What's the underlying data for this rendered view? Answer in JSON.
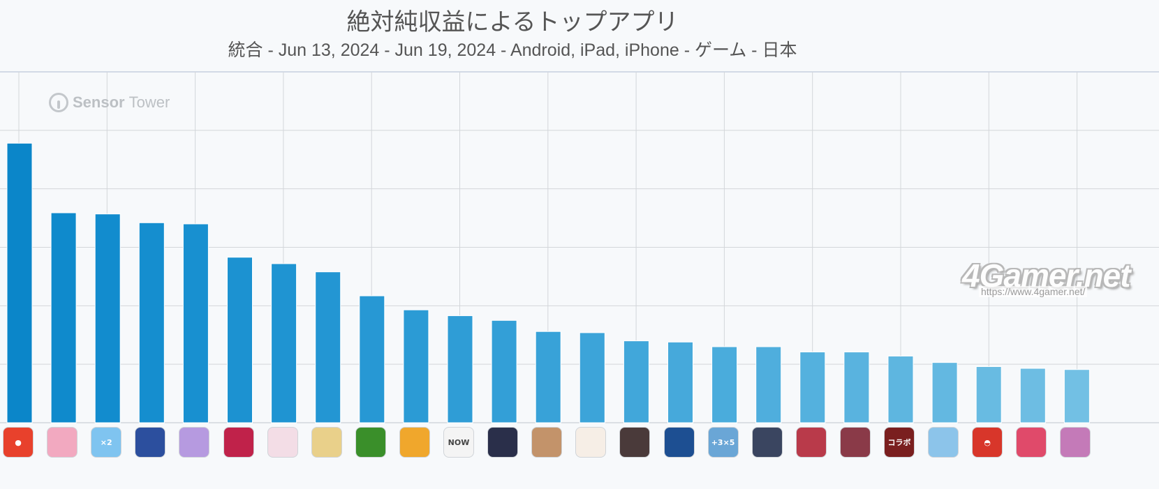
{
  "title": "絶対純収益によるトップアプリ",
  "subtitle": "統合 - Jun 13, 2024 - Jun 19, 2024 - Android, iPad, iPhone - ゲーム - 日本",
  "watermarks": {
    "sensor_bold": "Sensor",
    "sensor_light": "Tower",
    "gamer": "4Gamer.net",
    "gamer_url": "https://www.4gamer.net/"
  },
  "chart_data": {
    "type": "bar",
    "title": "絶対純収益によるトップアプリ",
    "subtitle": "統合 - Jun 13, 2024 - Jun 19, 2024 - Android, iPad, iPhone - ゲーム - 日本",
    "ylim": [
      0,
      6
    ],
    "grid": true,
    "values": [
      4.78,
      3.59,
      3.57,
      3.42,
      3.4,
      2.83,
      2.72,
      2.58,
      2.17,
      1.93,
      1.83,
      1.75,
      1.56,
      1.54,
      1.4,
      1.38,
      1.3,
      1.3,
      1.21,
      1.21,
      1.14,
      1.03,
      0.96,
      0.93,
      0.91
    ],
    "bar_colors": [
      "#0b86c9",
      "#0f8acc",
      "#128cce",
      "#158ecf",
      "#1890d0",
      "#1c92d1",
      "#1f94d2",
      "#2396d3",
      "#2798d4",
      "#2b9bd5",
      "#2f9dd6",
      "#339fd7",
      "#38a2d8",
      "#3ca4d9",
      "#41a7da",
      "#46a9db",
      "#4aacdc",
      "#4faedd",
      "#54b1de",
      "#59b3df",
      "#5eb6e0",
      "#63b8e1",
      "#68bbe2",
      "#6dbde3",
      "#72c0e4"
    ]
  },
  "app_icons": [
    {
      "icon": "monster-strike-icon",
      "color": "#e8412c",
      "label": "●"
    },
    {
      "icon": "pink-anime-icon",
      "color": "#f2a9c0",
      "label": ""
    },
    {
      "icon": "puzzle-x2-icon",
      "color": "#7fc4f0",
      "label": "×2"
    },
    {
      "icon": "baseball-players-icon",
      "color": "#2c4f9e",
      "label": ""
    },
    {
      "icon": "uma-musume-icon",
      "color": "#b69ae0",
      "label": ""
    },
    {
      "icon": "dragon-icon",
      "color": "#c0224a",
      "label": ""
    },
    {
      "icon": "white-hair-girl-icon",
      "color": "#f3dde6",
      "label": ""
    },
    {
      "icon": "fgo-saber-icon",
      "color": "#e9d08a",
      "label": ""
    },
    {
      "icon": "mushroom-game-icon",
      "color": "#3a8f2a",
      "label": ""
    },
    {
      "icon": "royal-match-icon",
      "color": "#f0a72c",
      "label": ""
    },
    {
      "icon": "now-logo-icon",
      "color": "#f4f4f4",
      "label": "NOW"
    },
    {
      "icon": "dark-hero-icon",
      "color": "#2a2f4a",
      "label": ""
    },
    {
      "icon": "soldier-icon",
      "color": "#c3936a",
      "label": ""
    },
    {
      "icon": "genshin-paimon-icon",
      "color": "#f6eee6",
      "label": ""
    },
    {
      "icon": "konami-team-icon",
      "color": "#4a3a3a",
      "label": ""
    },
    {
      "icon": "globe-icon",
      "color": "#1d4f92",
      "label": ""
    },
    {
      "icon": "plus-three-x-five-icon",
      "color": "#6aa6d6",
      "label": "+3×5"
    },
    {
      "icon": "dark-character-icon",
      "color": "#3a4560",
      "label": ""
    },
    {
      "icon": "jujutsu-icon",
      "color": "#b93a4a",
      "label": ""
    },
    {
      "icon": "red-hair-girl-icon",
      "color": "#8a3a48",
      "label": ""
    },
    {
      "icon": "collab-icon",
      "color": "#7a1f1f",
      "label": "コラボ"
    },
    {
      "icon": "blue-girl-icon",
      "color": "#8cc4ea",
      "label": ""
    },
    {
      "icon": "pokeball-icon",
      "color": "#d8362a",
      "label": "◓"
    },
    {
      "icon": "magic-idol-icon",
      "color": "#e04a6a",
      "label": ""
    },
    {
      "icon": "purple-girl-icon",
      "color": "#c47ab8",
      "label": ""
    }
  ]
}
